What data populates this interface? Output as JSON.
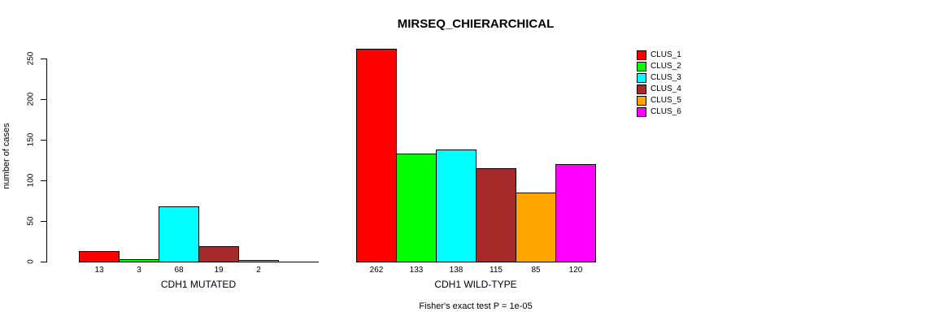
{
  "chart_data": {
    "type": "bar",
    "title": "MIRSEQ_CHIERARCHICAL",
    "ylabel": "number of cases",
    "ylim": [
      0,
      250
    ],
    "yticks": [
      0,
      50,
      100,
      150,
      200,
      250
    ],
    "grid": false,
    "legend_position": "top-right",
    "bar_value_labels_shown": true,
    "categories": [
      "CDH1 MUTATED",
      "CDH1 WILD-TYPE"
    ],
    "series": [
      {
        "name": "CLUS_1",
        "color": "#FF0000",
        "values": [
          13,
          262
        ]
      },
      {
        "name": "CLUS_2",
        "color": "#00FF00",
        "values": [
          3,
          133
        ]
      },
      {
        "name": "CLUS_3",
        "color": "#00FFFF",
        "values": [
          68,
          138
        ]
      },
      {
        "name": "CLUS_4",
        "color": "#A52A2A",
        "values": [
          19,
          115
        ]
      },
      {
        "name": "CLUS_5",
        "color": "#FFA500",
        "values": [
          2,
          85
        ]
      },
      {
        "name": "CLUS_6",
        "color": "#FF00FF",
        "values": [
          0,
          120
        ]
      }
    ],
    "annotation": "Fisher's exact test P = 1e-05",
    "axis_color": "#000000"
  }
}
